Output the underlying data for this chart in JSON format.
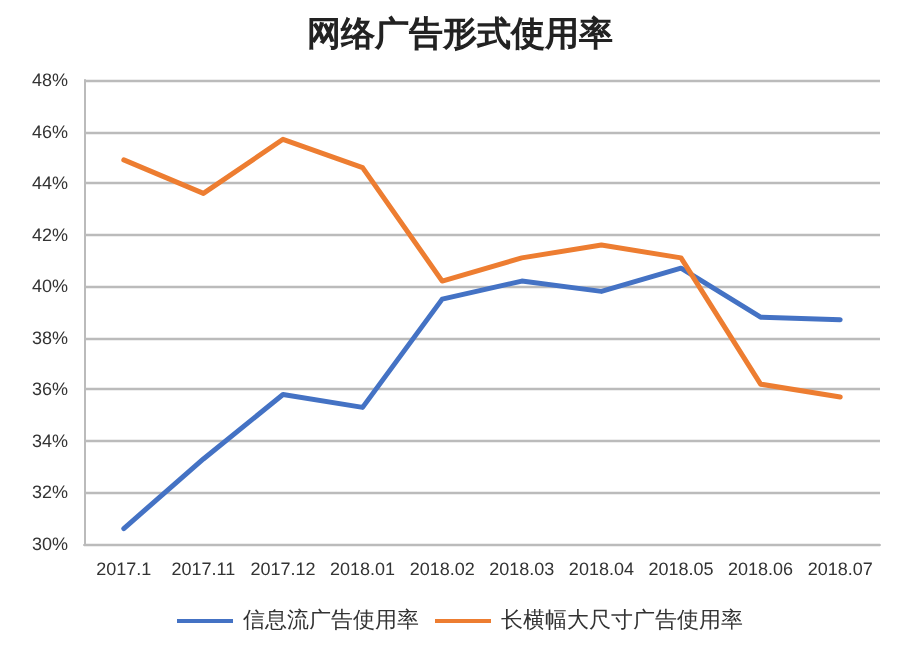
{
  "chart_data": {
    "type": "line",
    "title": "网络广告形式使用率",
    "categories": [
      "2017.1",
      "2017.11",
      "2017.12",
      "2018.01",
      "2018.02",
      "2018.03",
      "2018.04",
      "2018.05",
      "2018.06",
      "2018.07"
    ],
    "series": [
      {
        "name": "信息流广告使用率",
        "color": "#4472c4",
        "values": [
          30.6,
          33.3,
          35.8,
          35.3,
          39.5,
          40.2,
          39.8,
          40.7,
          38.8,
          38.7
        ]
      },
      {
        "name": "长横幅大尺寸广告使用率",
        "color": "#ed7d31",
        "values": [
          44.9,
          43.6,
          45.7,
          44.6,
          40.2,
          41.1,
          41.6,
          41.1,
          36.2,
          35.7
        ]
      }
    ],
    "ylim": [
      30,
      48
    ],
    "yticks": [
      {
        "value": 30,
        "label": "30%"
      },
      {
        "value": 32,
        "label": "32%"
      },
      {
        "value": 34,
        "label": "34%"
      },
      {
        "value": 36,
        "label": "36%"
      },
      {
        "value": 38,
        "label": "38%"
      },
      {
        "value": 40,
        "label": "40%"
      },
      {
        "value": 42,
        "label": "42%"
      },
      {
        "value": 44,
        "label": "44%"
      },
      {
        "value": 46,
        "label": "46%"
      },
      {
        "value": 48,
        "label": "48%"
      }
    ],
    "grid": "y",
    "legend": "bottom",
    "marker": "none",
    "line_style": "solid"
  }
}
